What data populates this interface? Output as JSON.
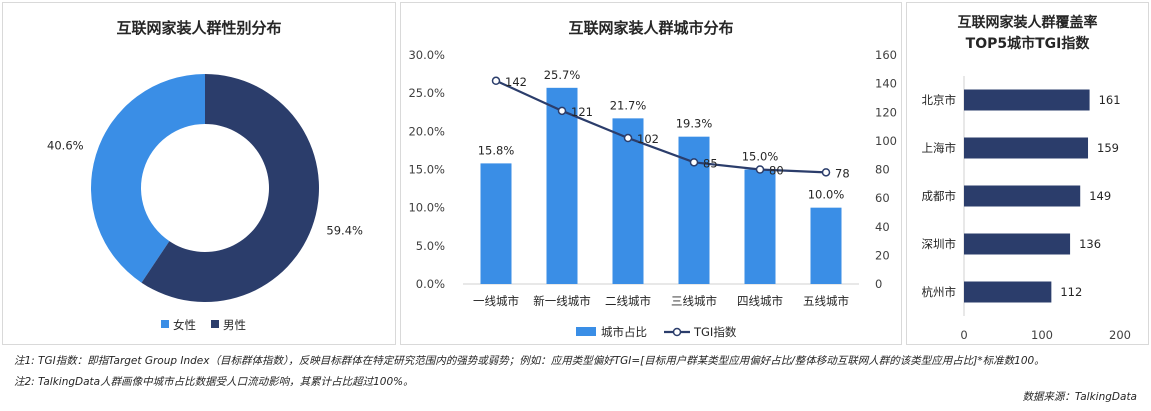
{
  "colors": {
    "light_blue": "#3a8ee6",
    "navy": "#2b3d6b",
    "line_marker_fill": "#ffffff"
  },
  "chart_data": [
    {
      "type": "pie",
      "title": "互联网家装人群性别分布",
      "donut": true,
      "slices": [
        {
          "label": "女性",
          "value": 40.6,
          "display": "40.6%",
          "color": "#3a8ee6"
        },
        {
          "label": "男性",
          "value": 59.4,
          "display": "59.4%",
          "color": "#2b3d6b"
        }
      ],
      "legend_position": "bottom"
    },
    {
      "type": "bar",
      "title": "互联网家装人群城市分布",
      "categories": [
        "一线城市",
        "新一线城市",
        "二线城市",
        "三线城市",
        "四线城市",
        "五线城市"
      ],
      "series": [
        {
          "name": "城市占比",
          "type": "bar",
          "axis": "left",
          "values": [
            15.8,
            25.7,
            21.7,
            19.3,
            15.0,
            10.0
          ],
          "labels": [
            "15.8%",
            "25.7%",
            "21.7%",
            "19.3%",
            "15.0%",
            "10.0%"
          ],
          "color": "#3a8ee6"
        },
        {
          "name": "TGI指数",
          "type": "line",
          "axis": "right",
          "values": [
            142,
            121,
            102,
            85,
            80,
            78
          ],
          "labels": [
            "142",
            "121",
            "102",
            "85",
            "80",
            "78"
          ],
          "color": "#2b3d6b"
        }
      ],
      "yleft_ticks": [
        "0.0%",
        "5.0%",
        "10.0%",
        "15.0%",
        "20.0%",
        "25.0%",
        "30.0%"
      ],
      "yleft_range": [
        0,
        30
      ],
      "yright_ticks": [
        "0",
        "20",
        "40",
        "60",
        "80",
        "100",
        "120",
        "140",
        "160"
      ],
      "yright_range": [
        0,
        160
      ],
      "legend_position": "bottom"
    },
    {
      "type": "bar",
      "orientation": "horizontal",
      "title_lines": [
        "互联网家装人群覆盖率",
        "TOP5城市TGI指数"
      ],
      "categories": [
        "北京市",
        "上海市",
        "成都市",
        "深圳市",
        "杭州市"
      ],
      "values": [
        161,
        159,
        149,
        136,
        112
      ],
      "xlim": [
        0,
        200
      ],
      "x_ticks": [
        "0",
        "100",
        "200"
      ],
      "color": "#2b3d6b"
    }
  ],
  "notes": [
    "注1:   TGI指数：即指Target Group Index（目标群体指数），反映目标群体在特定研究范围内的强势或弱势；例如：应用类型偏好TGI=[目标用户群某类型应用偏好占比/整体移动互联网人群的该类型应用占比]*标准数100。",
    "注2:   TalkingData人群画像中城市占比数据受人口流动影响，其累计占比超过100%。"
  ],
  "source": "数据来源：TalkingData"
}
